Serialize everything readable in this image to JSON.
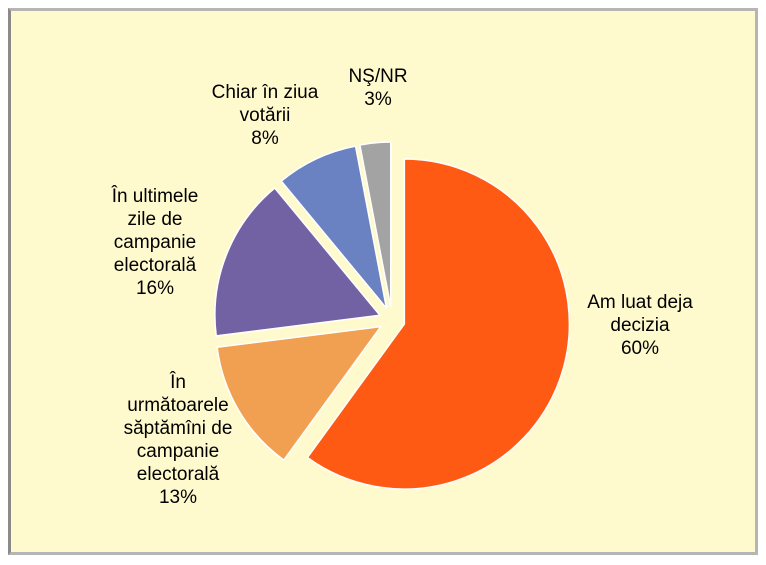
{
  "chart_data": {
    "type": "pie",
    "categories": [
      "Am luat deja decizia",
      "În următoarele săptămîni de campanie electorală",
      "În ultimele zile de campanie electorală",
      "Chiar în ziua votării",
      "NŞ/NR"
    ],
    "values": [
      60,
      13,
      16,
      8,
      3
    ],
    "value_labels": [
      "60%",
      "13%",
      "16%",
      "8%",
      "3%"
    ],
    "colors": [
      "#ff5a14",
      "#f0a050",
      "#7262a4",
      "#6a82c2",
      "#a3a3a3"
    ]
  }
}
